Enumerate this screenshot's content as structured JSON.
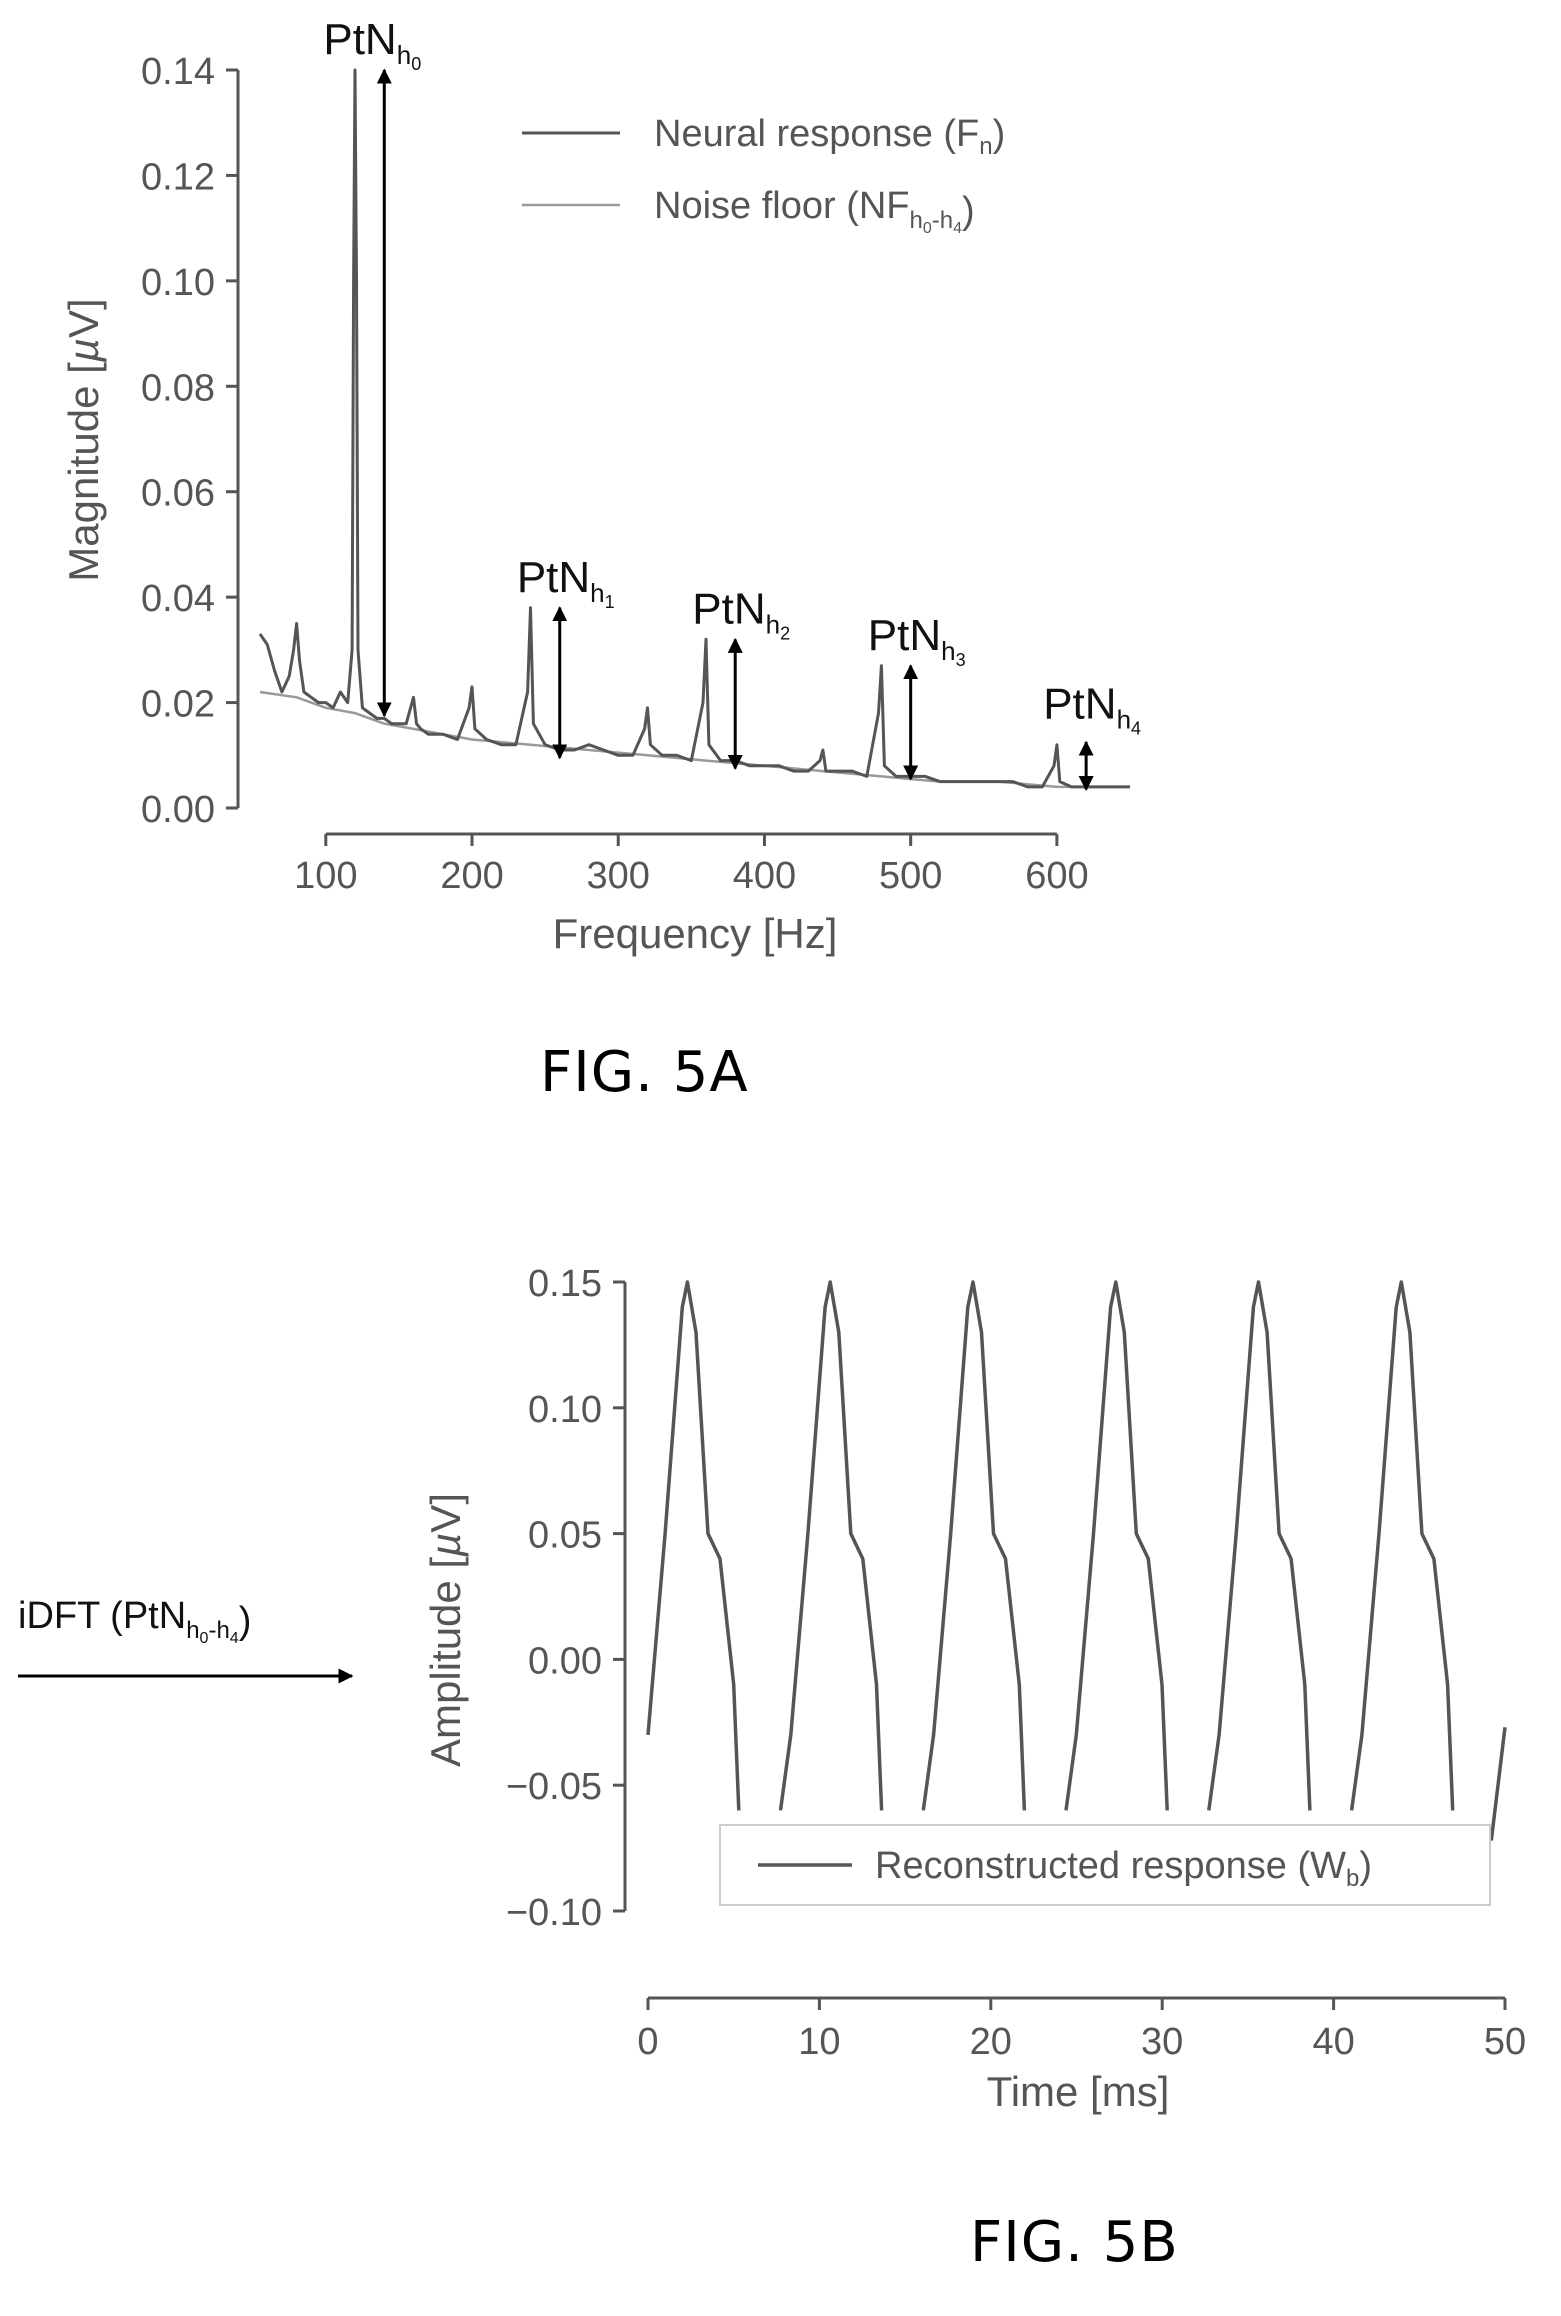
{
  "figure_a": {
    "caption": "FIG. 5A"
  },
  "figure_b": {
    "caption": "FIG. 5B"
  },
  "chart_data": [
    {
      "type": "line",
      "xlabel": "Frequency [Hz]",
      "ylabel_prefix": "Magnitude [",
      "ylabel_mu": "µ",
      "ylabel_suffix": "V]",
      "xlim": [
        55,
        650
      ],
      "ylim": [
        0,
        0.14
      ],
      "xticks": [
        100,
        200,
        300,
        400,
        500,
        600
      ],
      "xtick_labels": [
        "100",
        "200",
        "300",
        "400",
        "500",
        "600"
      ],
      "yticks": [
        0,
        0.02,
        0.04,
        0.06,
        0.08,
        0.1,
        0.12,
        0.14
      ],
      "ytick_labels": [
        "0.00",
        "0.02",
        "0.04",
        "0.06",
        "0.08",
        "0.10",
        "0.12",
        "0.14"
      ],
      "grid": false,
      "legend_position": "top-right",
      "colors": {
        "neural": "#555555",
        "noise": "#9a9a9a",
        "arrow": "#000000",
        "axis": "#555555"
      },
      "series": [
        {
          "name_main": "Neural response (F",
          "name_sub": "n",
          "name_tail": ")",
          "x": [
            55,
            60,
            65,
            70,
            75,
            78,
            80,
            82,
            85,
            90,
            95,
            100,
            105,
            110,
            115,
            118,
            119,
            120,
            121,
            122,
            125,
            130,
            135,
            140,
            145,
            150,
            155,
            158,
            160,
            162,
            165,
            170,
            180,
            190,
            198,
            200,
            202,
            210,
            220,
            230,
            238,
            240,
            242,
            250,
            260,
            270,
            280,
            290,
            300,
            310,
            318,
            320,
            322,
            330,
            340,
            350,
            358,
            360,
            362,
            370,
            380,
            390,
            400,
            410,
            420,
            430,
            438,
            440,
            442,
            450,
            460,
            470,
            478,
            480,
            482,
            490,
            500,
            510,
            520,
            530,
            540,
            550,
            560,
            570,
            580,
            590,
            598,
            600,
            602,
            610,
            620,
            630,
            640,
            650
          ],
          "y": [
            0.033,
            0.031,
            0.026,
            0.022,
            0.025,
            0.03,
            0.035,
            0.028,
            0.022,
            0.021,
            0.02,
            0.02,
            0.019,
            0.022,
            0.02,
            0.03,
            0.1,
            0.14,
            0.1,
            0.03,
            0.019,
            0.018,
            0.017,
            0.017,
            0.016,
            0.016,
            0.016,
            0.019,
            0.021,
            0.016,
            0.015,
            0.014,
            0.014,
            0.013,
            0.019,
            0.023,
            0.015,
            0.013,
            0.012,
            0.012,
            0.022,
            0.038,
            0.016,
            0.012,
            0.011,
            0.011,
            0.012,
            0.011,
            0.01,
            0.01,
            0.015,
            0.019,
            0.012,
            0.01,
            0.01,
            0.009,
            0.02,
            0.032,
            0.012,
            0.009,
            0.009,
            0.008,
            0.008,
            0.008,
            0.007,
            0.007,
            0.009,
            0.011,
            0.007,
            0.007,
            0.007,
            0.006,
            0.018,
            0.027,
            0.008,
            0.006,
            0.006,
            0.006,
            0.005,
            0.005,
            0.005,
            0.005,
            0.005,
            0.005,
            0.004,
            0.004,
            0.008,
            0.012,
            0.005,
            0.004,
            0.004,
            0.004,
            0.004,
            0.004
          ]
        },
        {
          "name_main": "Noise floor (NF",
          "name_sub": "h",
          "name_subsub": "0",
          "name_dash": "-h",
          "name_subsub2": "4",
          "name_tail": ")",
          "x": [
            55,
            80,
            100,
            120,
            140,
            160,
            180,
            200,
            240,
            280,
            320,
            360,
            400,
            440,
            480,
            520,
            560,
            600,
            650
          ],
          "y": [
            0.022,
            0.021,
            0.019,
            0.018,
            0.016,
            0.015,
            0.014,
            0.013,
            0.012,
            0.011,
            0.01,
            0.009,
            0.008,
            0.007,
            0.006,
            0.005,
            0.005,
            0.004,
            0.004
          ]
        }
      ],
      "annotations": [
        {
          "text": "PtN",
          "sub": "h",
          "subsub": "0",
          "x": 140,
          "y_top": 0.14,
          "y_bottom": 0.0175,
          "label_y": 0.143
        },
        {
          "text": "PtN",
          "sub": "h",
          "subsub": "1",
          "x": 260,
          "y_top": 0.038,
          "y_bottom": 0.0095,
          "label_y": 0.041
        },
        {
          "text": "PtN",
          "sub": "h",
          "subsub": "2",
          "x": 380,
          "y_top": 0.032,
          "y_bottom": 0.0075,
          "label_y": 0.035
        },
        {
          "text": "PtN",
          "sub": "h",
          "subsub": "3",
          "x": 500,
          "y_top": 0.027,
          "y_bottom": 0.0055,
          "label_y": 0.03
        },
        {
          "text": "PtN",
          "sub": "h",
          "subsub": "4",
          "x": 620,
          "y_top": 0.0125,
          "y_bottom": 0.0035,
          "label_y": 0.017
        }
      ]
    },
    {
      "type": "line",
      "xlabel": "Time [ms]",
      "ylabel_prefix": "Amplitude [",
      "ylabel_mu": "µ",
      "ylabel_suffix": "V]",
      "xlim": [
        0,
        50
      ],
      "ylim": [
        -0.1,
        0.15
      ],
      "xticks": [
        0,
        10,
        20,
        30,
        40,
        50
      ],
      "xtick_labels": [
        "0",
        "10",
        "20",
        "30",
        "40",
        "50"
      ],
      "yticks": [
        -0.1,
        -0.05,
        0,
        0.05,
        0.1,
        0.15
      ],
      "ytick_labels": [
        "−0.10",
        "−0.05",
        "0.00",
        "0.05",
        "0.10",
        "0.15"
      ],
      "grid": false,
      "legend_position": "bottom-right",
      "period_ms": 8.33,
      "colors": {
        "line": "#555555",
        "axis": "#555555",
        "legend_border": "#cccccc"
      },
      "series": [
        {
          "name_main": "Reconstructed response (W",
          "name_sub": "b",
          "name_tail": ")",
          "cycle_phase_ms": [
            0,
            1,
            2,
            2.3,
            2.8,
            3.5,
            4.2,
            5.0,
            5.3,
            7.8
          ],
          "cycle_values": [
            -0.03,
            0.05,
            0.14,
            0.15,
            0.13,
            0.05,
            0.04,
            -0.01,
            -0.06,
            -0.06
          ]
        }
      ],
      "input_label": {
        "text": "iDFT (PtN",
        "sub": "h",
        "subsub": "0",
        "dash": "-h",
        "subsub2": "4",
        "tail": ")"
      }
    }
  ]
}
